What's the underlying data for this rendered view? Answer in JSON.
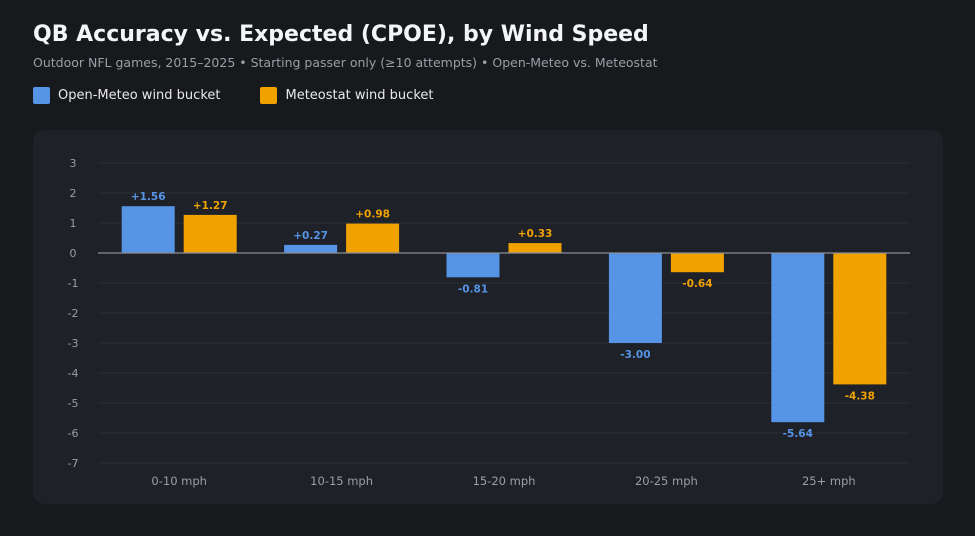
{
  "header": {
    "title": "QB Accuracy vs. Expected (CPOE), by Wind Speed",
    "subtitle": "Outdoor NFL games, 2015–2025  •  Starting passer only (≥10 attempts)  •  Open-Meteo vs. Meteostat"
  },
  "colors": {
    "background": "#18191c",
    "panel": "#1f2128",
    "open_meteo": "#5694e6",
    "meteostat": "#f0a200",
    "grid": "#2c2f38",
    "zero_line": "#8a8e97",
    "tick_text": "#9a9ea6"
  },
  "chart_data": {
    "type": "bar",
    "categories": [
      "0-10 mph",
      "10-15 mph",
      "15-20 mph",
      "20-25 mph",
      "25+ mph"
    ],
    "series": [
      {
        "name": "Open-Meteo wind bucket",
        "values": [
          1.56,
          0.27,
          -0.81,
          -3.0,
          -5.64
        ],
        "labels": [
          "+1.56",
          "+0.27",
          "-0.81",
          "-3.00",
          "-5.64"
        ]
      },
      {
        "name": "Meteostat wind bucket",
        "values": [
          1.27,
          0.98,
          0.33,
          -0.64,
          -4.38
        ],
        "labels": [
          "+1.27",
          "+0.98",
          "+0.33",
          "-0.64",
          "-4.38"
        ]
      }
    ],
    "ylim": [
      -7,
      3
    ],
    "yticks": [
      3,
      2,
      1,
      0,
      -1,
      -2,
      -3,
      -4,
      -5,
      -6,
      -7
    ],
    "ytick_labels": [
      "3",
      "2",
      "1",
      "0",
      "-1",
      "-2",
      "-3",
      "-4",
      "-5",
      "-6",
      "-7"
    ],
    "grid": true,
    "legend_position": "top-left"
  }
}
